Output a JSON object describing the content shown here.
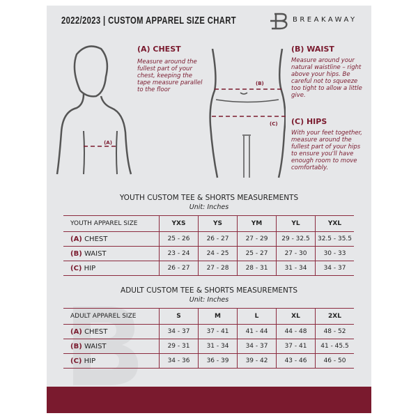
{
  "header": {
    "title": "2022/2023  |  CUSTOM APPAREL SIZE CHART",
    "brand": "BREAKAWAY"
  },
  "measures": {
    "chest": {
      "title": "(A) CHEST",
      "desc": "Measure around the fullest part of your chest, keeping the tape measure parallel to the floor",
      "marker": "(A)"
    },
    "waist": {
      "title": "(B) WAIST",
      "desc": "Measure around your natural waistline – right above your hips. Be careful not to squeeze too tight to allow a little give.",
      "marker": "(B)"
    },
    "hips": {
      "title": "(C) HIPS",
      "desc": "With your feet together, measure around the fullest part of your hips to ensure you'll have enough room to move comfortably.",
      "marker": "(C)"
    }
  },
  "colors": {
    "accent": "#7a1a2e",
    "panel": "#e6e7e9"
  },
  "youth": {
    "title": "YOUTH CUSTOM TEE & SHORTS MEASUREMENTS",
    "unit": "Unit: Inches",
    "header": "YOUTH APPAREL SIZE",
    "sizes": [
      "YXS",
      "YS",
      "YM",
      "YL",
      "YXL"
    ],
    "rows": [
      {
        "letter": "(A)",
        "label": "CHEST",
        "values": [
          "25 - 26",
          "26 - 27",
          "27 - 29",
          "29 - 32.5",
          "32.5 - 35.5"
        ]
      },
      {
        "letter": "(B)",
        "label": "WAIST",
        "values": [
          "23 - 24",
          "24 - 25",
          "25 - 27",
          "27 - 30",
          "30 - 33"
        ]
      },
      {
        "letter": "(C)",
        "label": "HIP",
        "values": [
          "26 - 27",
          "27 - 28",
          "28 - 31",
          "31 - 34",
          "34 - 37"
        ]
      }
    ]
  },
  "adult": {
    "title": "ADULT CUSTOM TEE & SHORTS MEASUREMENTS",
    "unit": "Unit: Inches",
    "header": "ADULT APPAREL SIZE",
    "sizes": [
      "S",
      "M",
      "L",
      "XL",
      "2XL"
    ],
    "rows": [
      {
        "letter": "(A)",
        "label": "CHEST",
        "values": [
          "34 - 37",
          "37 - 41",
          "41 - 44",
          "44 - 48",
          "48 - 52"
        ]
      },
      {
        "letter": "(B)",
        "label": "WAIST",
        "values": [
          "29 - 31",
          "31 - 34",
          "34 - 37",
          "37 - 41",
          "41 - 45.5"
        ]
      },
      {
        "letter": "(C)",
        "label": "HIP",
        "values": [
          "34 - 36",
          "36 - 39",
          "39 - 42",
          "43 - 46",
          "46 - 50"
        ]
      }
    ]
  }
}
